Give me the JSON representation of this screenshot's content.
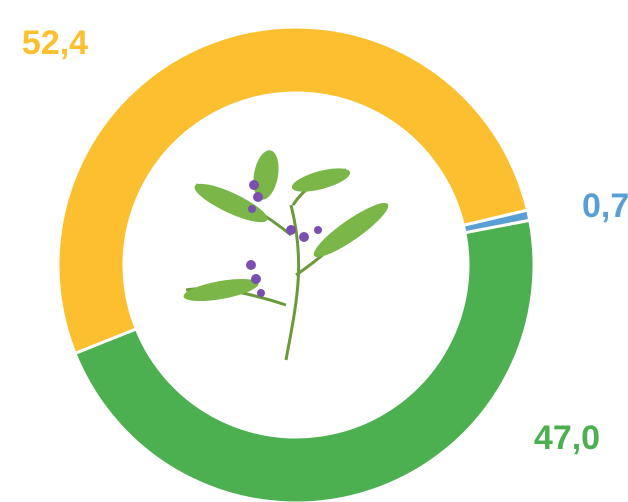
{
  "chart_data": {
    "type": "donut",
    "categories": [
      null,
      null,
      null
    ],
    "values": [
      52.4,
      0.7,
      47.0
    ],
    "value_labels": [
      "52,4",
      "0,7",
      "47,0"
    ],
    "colors": [
      "#fbbf2f",
      "#5a9fd4",
      "#4caf50"
    ]
  }
}
